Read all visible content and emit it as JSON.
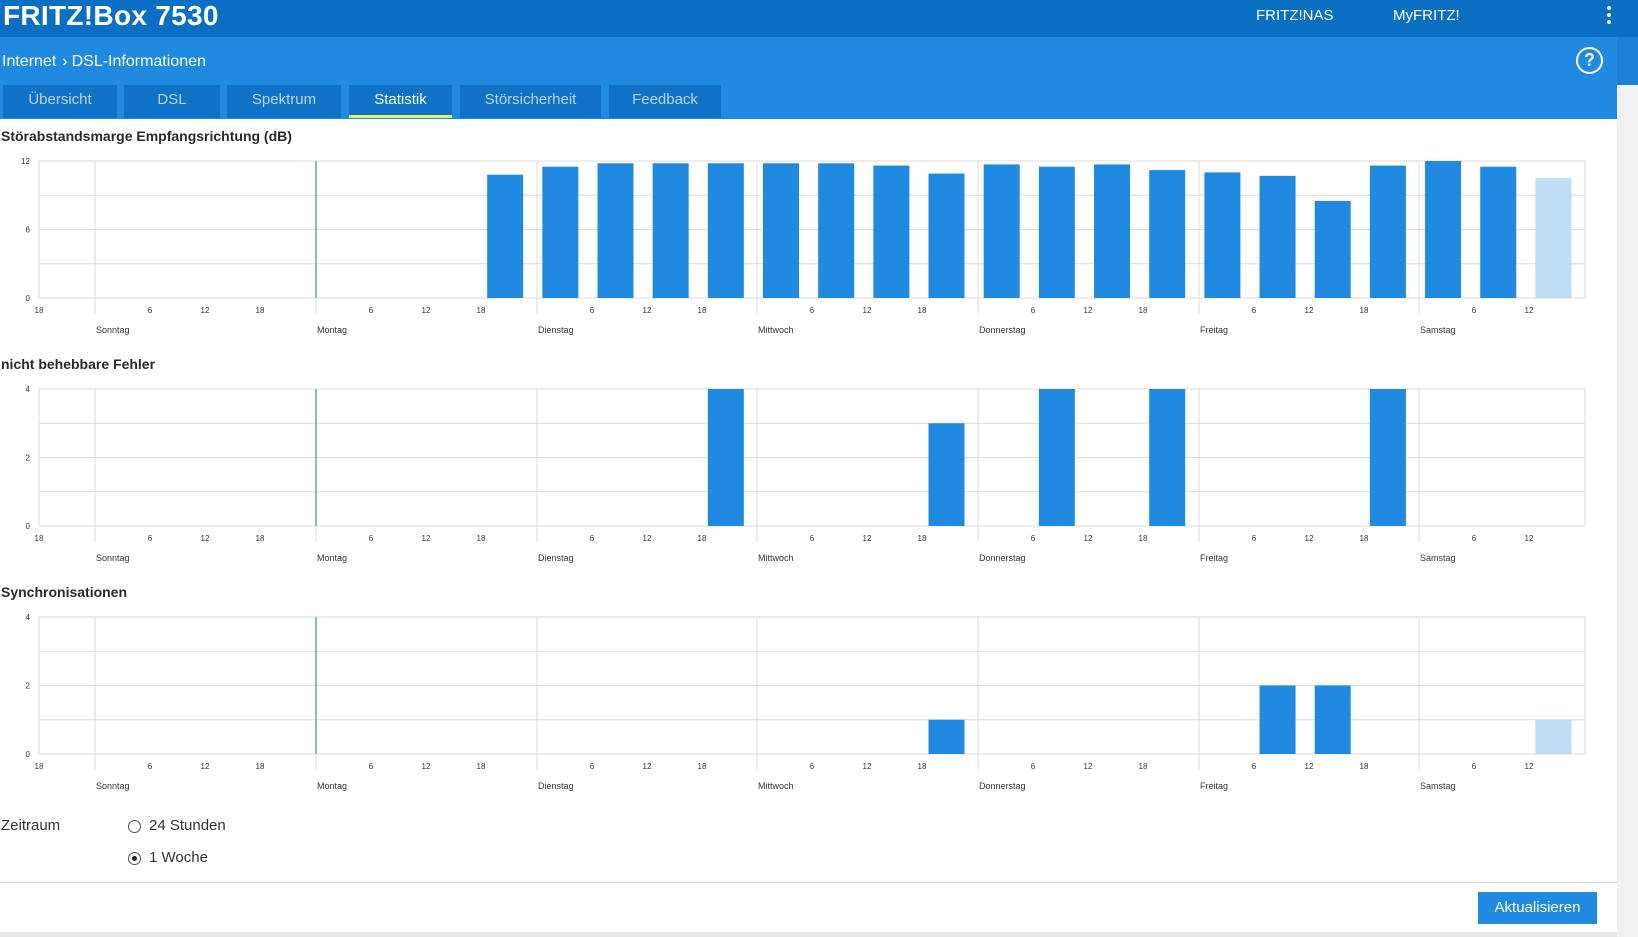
{
  "header": {
    "product_name": "FRITZ!Box 7530",
    "links": [
      "FRITZ!NAS",
      "MyFRITZ!"
    ],
    "menu_icon": "vertical-dots-icon"
  },
  "breadcrumb": {
    "parent": "Internet",
    "current": "DSL-Informationen",
    "help_icon": "help-icon"
  },
  "tabs": [
    {
      "label": "Übersicht",
      "active": false
    },
    {
      "label": "DSL",
      "active": false
    },
    {
      "label": "Spektrum",
      "active": false
    },
    {
      "label": "Statistik",
      "active": true
    },
    {
      "label": "Störsicherheit",
      "active": false
    },
    {
      "label": "Feedback",
      "active": false
    }
  ],
  "colors": {
    "brand_dark": "#0a6fc2",
    "brand": "#2089e0",
    "tab_bg": "#0f72c7",
    "active_underline": "#e6ee72",
    "bar": "#2089e0",
    "bar_current": "#bfddf5",
    "grid": "#dcdcdc",
    "marker": "#6f9cc5"
  },
  "time_axis": {
    "hour_ticks": [
      "18",
      "6",
      "12",
      "18",
      "6",
      "12",
      "18",
      "6",
      "12",
      "18",
      "6",
      "12",
      "18",
      "6",
      "12",
      "18",
      "6",
      "12",
      "18",
      "6",
      "12"
    ],
    "days": [
      "Sonntag",
      "Montag",
      "Dienstag",
      "Mittwoch",
      "Donnerstag",
      "Freitag",
      "Samstag"
    ]
  },
  "chart_data": [
    {
      "type": "bar",
      "title": "Störabstandsmarge Empfangsrichtung (dB)",
      "ylim": [
        0,
        12
      ],
      "yticks": [
        "0",
        "6",
        "12"
      ],
      "bars": [
        {
          "slot": 8,
          "value": 10.8
        },
        {
          "slot": 9,
          "value": 11.5
        },
        {
          "slot": 10,
          "value": 11.8
        },
        {
          "slot": 11,
          "value": 11.8
        },
        {
          "slot": 12,
          "value": 11.8
        },
        {
          "slot": 13,
          "value": 11.8
        },
        {
          "slot": 14,
          "value": 11.8
        },
        {
          "slot": 15,
          "value": 11.6
        },
        {
          "slot": 16,
          "value": 10.9
        },
        {
          "slot": 17,
          "value": 11.7
        },
        {
          "slot": 18,
          "value": 11.5
        },
        {
          "slot": 19,
          "value": 11.7
        },
        {
          "slot": 20,
          "value": 11.2
        },
        {
          "slot": 21,
          "value": 11.0
        },
        {
          "slot": 22,
          "value": 10.7
        },
        {
          "slot": 23,
          "value": 8.5
        },
        {
          "slot": 24,
          "value": 11.6
        },
        {
          "slot": 25,
          "value": 12.0
        },
        {
          "slot": 26,
          "value": 11.5
        },
        {
          "slot": 27,
          "value": 10.5,
          "current": true
        }
      ]
    },
    {
      "type": "bar",
      "title": "nicht behebbare Fehler",
      "ylim": [
        0,
        4
      ],
      "yticks": [
        "0",
        "2",
        "4"
      ],
      "bars": [
        {
          "slot": 12,
          "value": 4
        },
        {
          "slot": 16,
          "value": 3
        },
        {
          "slot": 18,
          "value": 4
        },
        {
          "slot": 20,
          "value": 4
        },
        {
          "slot": 24,
          "value": 4
        }
      ]
    },
    {
      "type": "bar",
      "title": "Synchronisationen",
      "ylim": [
        0,
        4
      ],
      "yticks": [
        "0",
        "2",
        "4"
      ],
      "bars": [
        {
          "slot": 16,
          "value": 1
        },
        {
          "slot": 22,
          "value": 2
        },
        {
          "slot": 23,
          "value": 2
        },
        {
          "slot": 27,
          "value": 1,
          "current": true
        }
      ]
    }
  ],
  "period": {
    "label": "Zeitraum",
    "options": [
      {
        "label": "24 Stunden",
        "checked": false
      },
      {
        "label": "1 Woche",
        "checked": true
      }
    ]
  },
  "actions": {
    "refresh_label": "Aktualisieren"
  }
}
